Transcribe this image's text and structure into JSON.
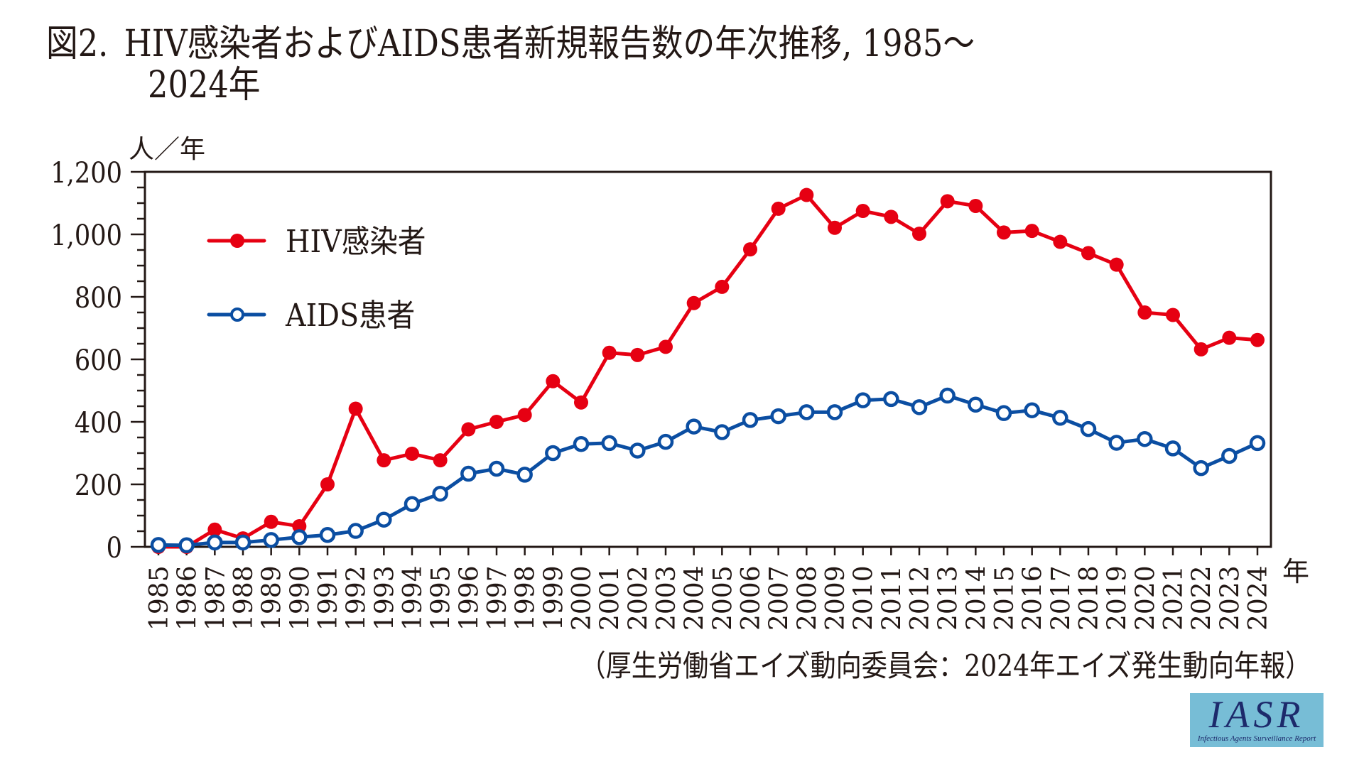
{
  "title": {
    "fig_number": "図2.",
    "line1": "HIV感染者およびAIDS患者新規報告数の年次推移, 1985～",
    "line2": "2024年"
  },
  "source_caption": "（厚生労働省エイズ動向委員会：2024年エイズ発生動向年報）",
  "logo": {
    "main": "IASR",
    "sub": "Infectious Agents Surveillance Report"
  },
  "colors": {
    "hiv": "#e60012",
    "aids": "#0b4ea2",
    "axis": "#231815",
    "logo_bg": "#77bdd6"
  },
  "chart_data": {
    "type": "line",
    "title": "HIV感染者およびAIDS患者新規報告数の年次推移, 1985～2024年",
    "xlabel": "年",
    "ylabel": "人／年",
    "ylim": [
      0,
      1200
    ],
    "yticks": [
      0,
      200,
      400,
      600,
      800,
      1000,
      1200
    ],
    "ytick_labels": [
      "0",
      "200",
      "400",
      "600",
      "800",
      "1,000",
      "1,200"
    ],
    "y_minor_step": 50,
    "grid": false,
    "legend_position": "top-left",
    "x": [
      1985,
      1986,
      1987,
      1988,
      1989,
      1990,
      1991,
      1992,
      1993,
      1994,
      1995,
      1996,
      1997,
      1998,
      1999,
      2000,
      2001,
      2002,
      2003,
      2004,
      2005,
      2006,
      2007,
      2008,
      2009,
      2010,
      2011,
      2012,
      2013,
      2014,
      2015,
      2016,
      2017,
      2018,
      2019,
      2020,
      2021,
      2022,
      2023,
      2024
    ],
    "series": [
      {
        "name": "HIV感染者",
        "marker": "filled-circle",
        "color": "#e60012",
        "values": [
          0,
          0,
          55,
          27,
          80,
          66,
          200,
          442,
          277,
          298,
          277,
          376,
          400,
          422,
          530,
          462,
          621,
          614,
          640,
          780,
          832,
          952,
          1082,
          1126,
          1021,
          1075,
          1056,
          1002,
          1106,
          1091,
          1006,
          1011,
          976,
          940,
          903,
          750,
          742,
          632,
          669,
          662
        ]
      },
      {
        "name": "AIDS患者",
        "marker": "open-circle",
        "color": "#0b4ea2",
        "values": [
          6,
          5,
          14,
          14,
          22,
          31,
          38,
          51,
          87,
          137,
          170,
          234,
          250,
          231,
          300,
          329,
          332,
          308,
          336,
          385,
          367,
          406,
          418,
          431,
          431,
          469,
          473,
          447,
          484,
          455,
          428,
          437,
          413,
          377,
          333,
          345,
          315,
          252,
          291,
          332
        ]
      }
    ]
  }
}
